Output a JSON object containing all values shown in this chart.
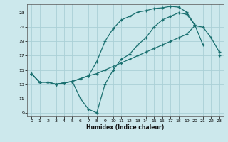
{
  "xlabel": "Humidex (Indice chaleur)",
  "ylabel": "",
  "bg_color": "#cce8ec",
  "grid_color": "#aad0d6",
  "line_color": "#1a7070",
  "xlim": [
    -0.5,
    23.5
  ],
  "ylim": [
    8.5,
    24.2
  ],
  "yticks": [
    9,
    11,
    13,
    15,
    17,
    19,
    21,
    23
  ],
  "xticks": [
    0,
    1,
    2,
    3,
    4,
    5,
    6,
    7,
    8,
    9,
    10,
    11,
    12,
    13,
    14,
    15,
    16,
    17,
    18,
    19,
    20,
    21,
    22,
    23
  ],
  "line1_x": [
    0,
    1,
    2,
    3,
    4,
    5,
    6,
    7,
    8,
    9,
    10,
    11,
    12,
    13,
    14,
    15,
    16,
    17,
    18,
    19,
    20,
    21,
    22,
    23
  ],
  "line1_y": [
    14.5,
    13.3,
    13.3,
    13.0,
    13.2,
    13.4,
    13.8,
    14.2,
    16.2,
    19.0,
    20.8,
    22.0,
    22.5,
    23.1,
    23.3,
    23.6,
    23.7,
    23.9,
    23.8,
    23.1,
    21.3,
    null,
    null,
    null
  ],
  "line2_x": [
    0,
    1,
    2,
    3,
    4,
    5,
    6,
    7,
    8,
    9,
    10,
    11,
    12,
    13,
    14,
    15,
    16,
    17,
    18,
    19,
    20,
    21,
    22,
    23
  ],
  "line2_y": [
    14.5,
    13.3,
    13.3,
    13.0,
    13.2,
    13.4,
    13.8,
    14.2,
    14.5,
    15.0,
    15.5,
    16.0,
    16.5,
    17.0,
    17.5,
    18.0,
    18.5,
    19.0,
    19.5,
    20.0,
    21.2,
    21.0,
    19.5,
    17.5
  ],
  "line3_x": [
    0,
    1,
    2,
    3,
    4,
    5,
    6,
    7,
    8,
    9,
    10,
    11,
    12,
    13,
    14,
    15,
    16,
    17,
    18,
    19,
    20,
    21,
    22,
    23
  ],
  "line3_y": [
    14.5,
    13.3,
    13.3,
    13.0,
    13.2,
    13.4,
    11.0,
    9.5,
    9.0,
    13.0,
    15.0,
    16.5,
    17.2,
    18.5,
    19.5,
    21.0,
    22.0,
    22.5,
    23.0,
    22.8,
    21.3,
    18.5,
    null,
    17.0
  ]
}
